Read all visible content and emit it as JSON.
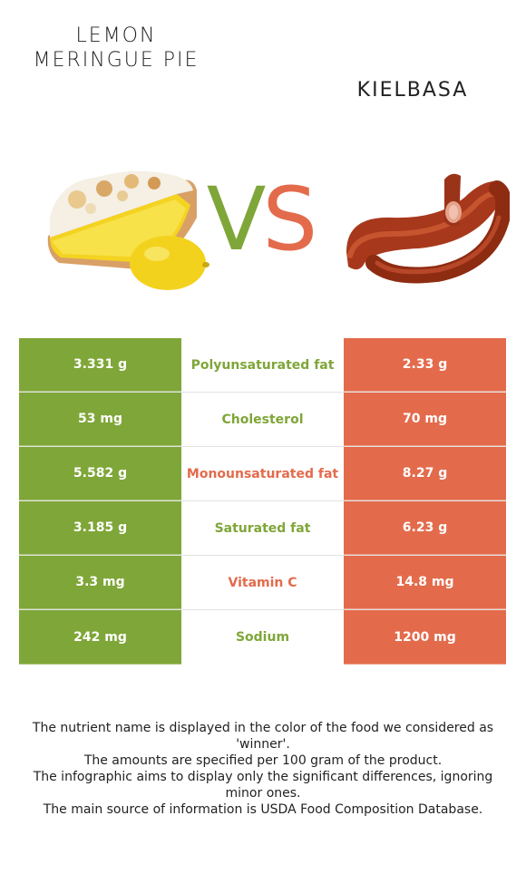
{
  "header": {
    "left_title": "LEMON MERINGUE PIE",
    "right_title": "KIELBASA",
    "vs_v": "V",
    "vs_s": "S"
  },
  "colors": {
    "left_food": "#7fa638",
    "right_food": "#e36b4c"
  },
  "rows": [
    {
      "left": "3.331 g",
      "nutrient": "Polyunsaturated fat",
      "right": "2.33 g",
      "winner": "left"
    },
    {
      "left": "53 mg",
      "nutrient": "Cholesterol",
      "right": "70 mg",
      "winner": "left"
    },
    {
      "left": "5.582 g",
      "nutrient": "Monounsaturated fat",
      "right": "8.27 g",
      "winner": "right"
    },
    {
      "left": "3.185 g",
      "nutrient": "Saturated fat",
      "right": "6.23 g",
      "winner": "left"
    },
    {
      "left": "3.3 mg",
      "nutrient": "Vitamin C",
      "right": "14.8 mg",
      "winner": "right"
    },
    {
      "left": "242 mg",
      "nutrient": "Sodium",
      "right": "1200 mg",
      "winner": "left"
    }
  ],
  "footnotes": [
    "The nutrient name is displayed in the color of the food we considered as 'winner'.",
    "The amounts are specified per 100 gram of the product.",
    "The infographic aims to display only the significant differences, ignoring minor ones.",
    "The main source of information is USDA Food Composition Database."
  ]
}
